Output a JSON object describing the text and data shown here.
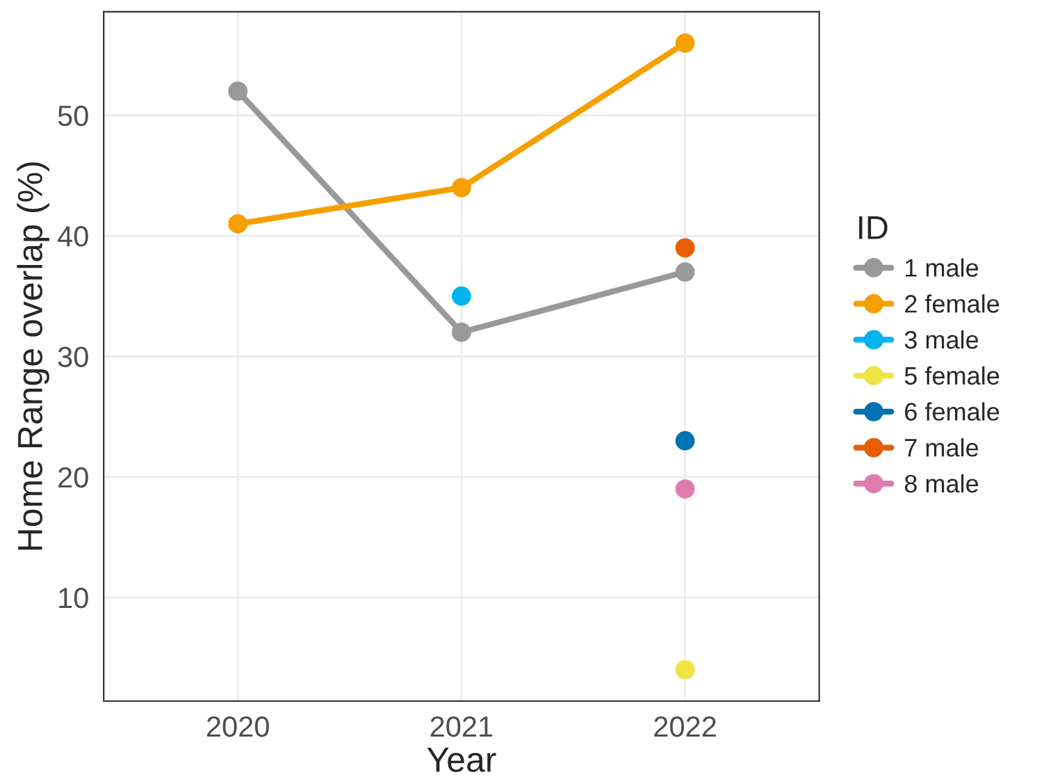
{
  "chart_data": {
    "type": "line",
    "xlabel": "Year",
    "ylabel": "Home Range overlap (%)",
    "legend_title": "ID",
    "x": [
      2020,
      2021,
      2022
    ],
    "xlim": [
      2019.4,
      2022.6
    ],
    "xticks": [
      2020,
      2021,
      2022
    ],
    "ylim": [
      1.4,
      58.6
    ],
    "yticks": [
      10,
      20,
      30,
      40,
      50
    ],
    "grid": true,
    "legend": "right",
    "marker": "circle",
    "line_style": "solid",
    "series": [
      {
        "name": "1 male",
        "color": "#999999",
        "values": [
          52,
          32,
          37
        ]
      },
      {
        "name": "2 female",
        "color": "#f5a000",
        "values": [
          41,
          44,
          56
        ]
      },
      {
        "name": "3 male",
        "color": "#00b4f0",
        "values": [
          null,
          35,
          null
        ]
      },
      {
        "name": "5 female",
        "color": "#f0e442",
        "values": [
          null,
          null,
          4
        ]
      },
      {
        "name": "6 female",
        "color": "#0072b2",
        "values": [
          null,
          null,
          23
        ]
      },
      {
        "name": "7 male",
        "color": "#e85d04",
        "values": [
          null,
          null,
          39
        ]
      },
      {
        "name": "8 male",
        "color": "#e07bb0",
        "values": [
          null,
          null,
          19
        ]
      }
    ]
  }
}
